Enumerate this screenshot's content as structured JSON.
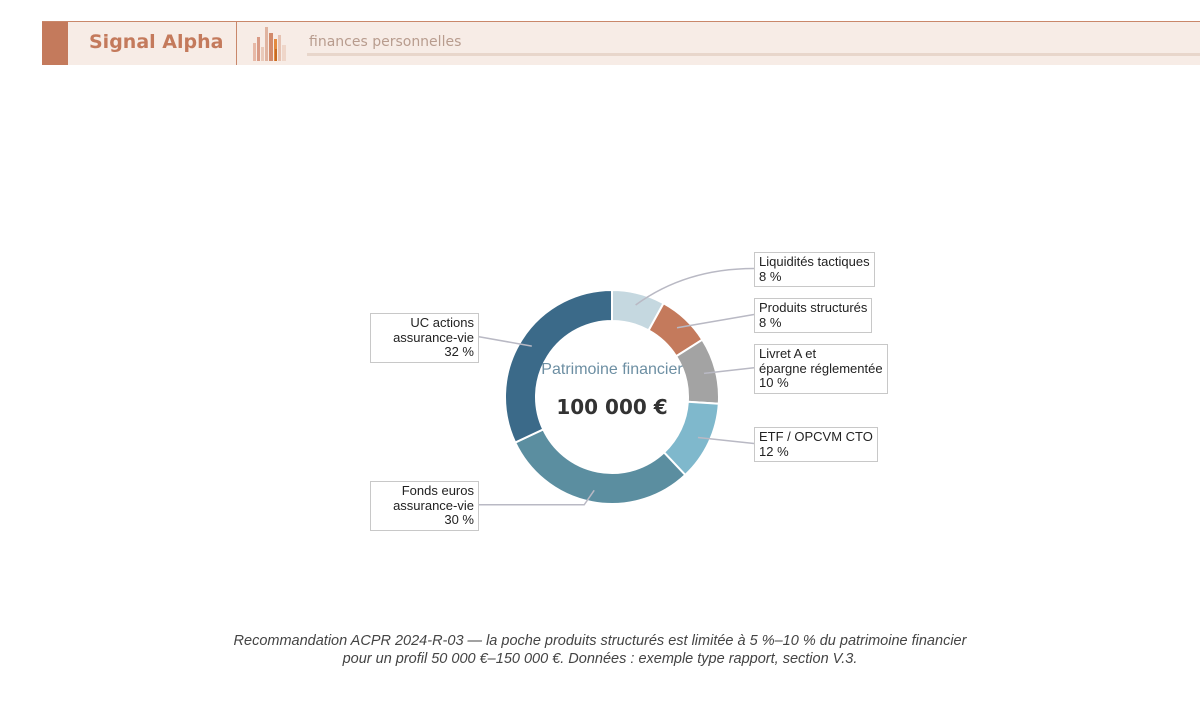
{
  "header": {
    "brand": "Signal Alpha",
    "subtitle": "finances personnelles"
  },
  "colors": {
    "accent": "#c47a5c",
    "header_bg": "#f7ece6"
  },
  "chart_data": {
    "type": "pie",
    "variant": "donut",
    "center_title": "Patrimoine financier",
    "center_value": "100 000 €",
    "slices": [
      {
        "label": "Liquidités tactiques",
        "pct_text": "8 %",
        "value": 8,
        "color": "#c5d8e0"
      },
      {
        "label": "Produits structurés",
        "pct_text": "8 %",
        "value": 8,
        "color": "#c47a5c"
      },
      {
        "label": "Livret A et\népargne réglementée",
        "pct_text": "10 %",
        "value": 10,
        "color": "#a3a3a3"
      },
      {
        "label": "ETF / OPCVM CTO",
        "pct_text": "12 %",
        "value": 12,
        "color": "#7fb8cc"
      },
      {
        "label": "Fonds euros\nassurance-vie",
        "pct_text": "30 %",
        "value": 30,
        "color": "#5b8ea0"
      },
      {
        "label": "UC actions\nassurance-vie",
        "pct_text": "32 %",
        "value": 32,
        "color": "#3b6a89"
      }
    ]
  },
  "footer": {
    "line1": "Recommandation ACPR 2024-R-03 — la poche produits structurés est limitée à 5 %–10 % du patrimoine financier",
    "line2": "pour un profil 50 000 €–150 000 €. Données : exemple type rapport, section V.3."
  }
}
